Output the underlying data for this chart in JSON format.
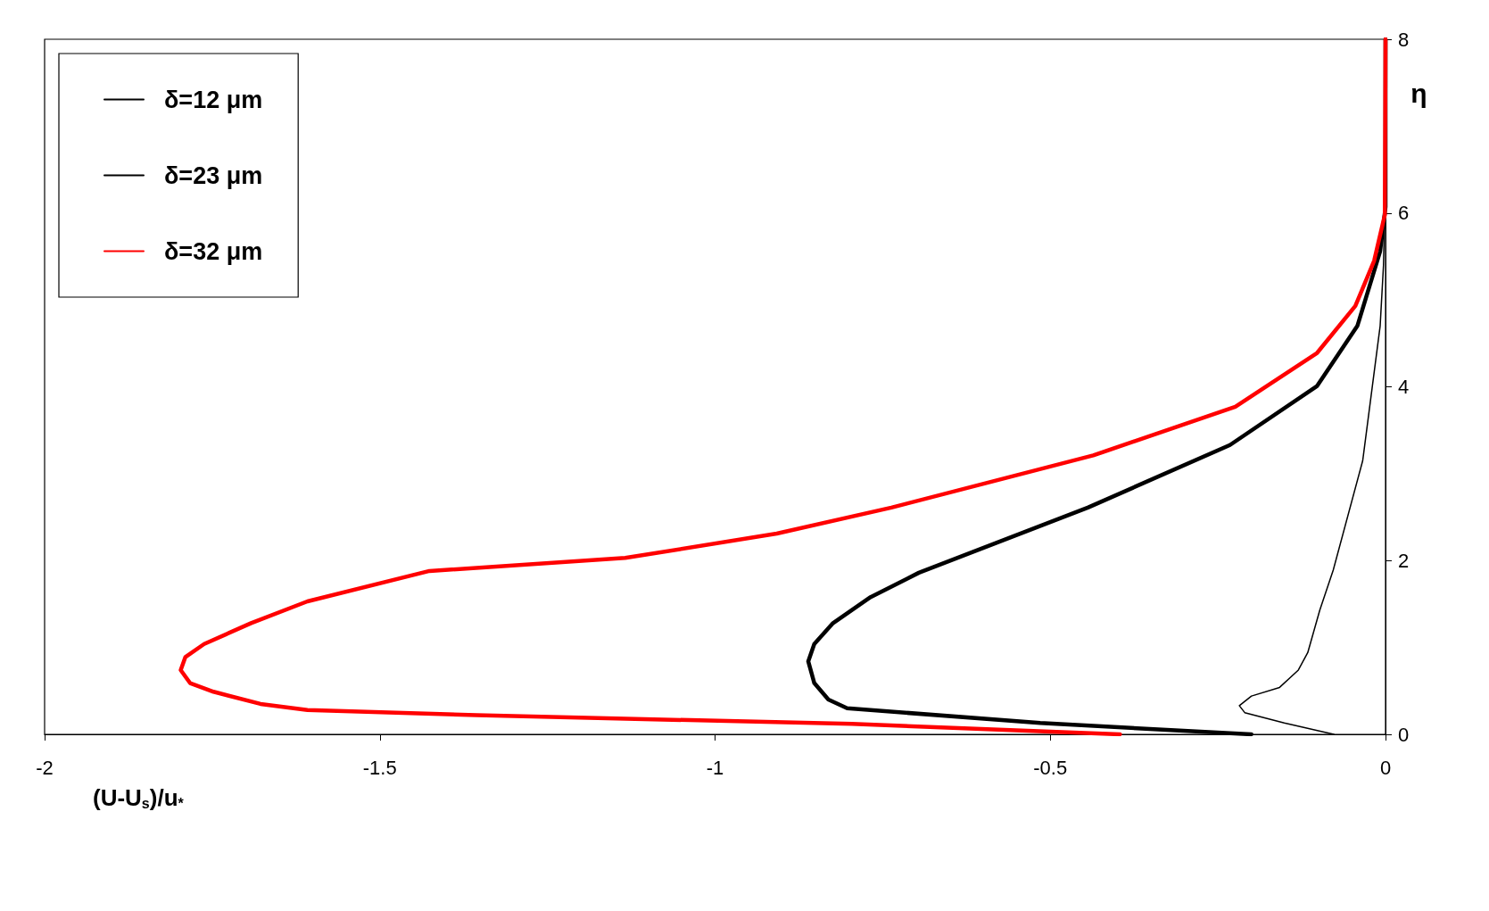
{
  "chart_data": {
    "type": "line",
    "xlabel": "(U-U$_{s}$)/u$_{*}$",
    "ylabel": "η",
    "xlim": [
      -2,
      0
    ],
    "xticks": [
      -2,
      -1.5,
      -1,
      -0.5,
      0
    ],
    "ylim": [
      0,
      8
    ],
    "yticks": [
      0,
      2,
      4,
      6,
      8
    ],
    "grid": false,
    "legend": "top left",
    "marker": "none",
    "line_style": "solid",
    "series": [
      {
        "name": "δ=12 μm",
        "color": "#000000",
        "x": [
          -0.077,
          -0.151,
          -0.21,
          -0.218,
          -0.2,
          -0.158,
          -0.13,
          -0.116,
          -0.098,
          -0.078,
          -0.034,
          -0.008,
          -0.003,
          0,
          0
        ],
        "values": [
          0,
          0.13,
          0.25,
          0.33,
          0.44,
          0.54,
          0.74,
          0.94,
          1.43,
          1.89,
          3.15,
          4.7,
          5.4,
          6.4,
          8
        ]
      },
      {
        "name": "δ=23 μm",
        "color": "#000000",
        "x": [
          -0.2,
          -0.515,
          -0.803,
          -0.831,
          -0.852,
          -0.861,
          -0.852,
          -0.824,
          -0.768,
          -0.696,
          -0.444,
          -0.232,
          -0.102,
          -0.042,
          -0.008,
          0,
          0
        ],
        "values": [
          0,
          0.13,
          0.3,
          0.4,
          0.59,
          0.84,
          1.04,
          1.28,
          1.58,
          1.86,
          2.61,
          3.33,
          4.01,
          4.7,
          5.56,
          6.07,
          8
        ]
      },
      {
        "name": "δ=32 μm",
        "color": "#ff0000",
        "x": [
          -0.396,
          -0.796,
          -1.356,
          -1.608,
          -1.678,
          -1.748,
          -1.783,
          -1.797,
          -1.79,
          -1.762,
          -1.692,
          -1.608,
          -1.426,
          -1.134,
          -0.908,
          -0.737,
          -0.436,
          -0.224,
          -0.102,
          -0.045,
          -0.017,
          -0.001,
          0
        ],
        "values": [
          0,
          0.12,
          0.22,
          0.28,
          0.35,
          0.49,
          0.59,
          0.74,
          0.89,
          1.04,
          1.28,
          1.53,
          1.88,
          2.03,
          2.31,
          2.61,
          3.21,
          3.77,
          4.39,
          4.93,
          5.45,
          5.98,
          8
        ]
      }
    ]
  }
}
